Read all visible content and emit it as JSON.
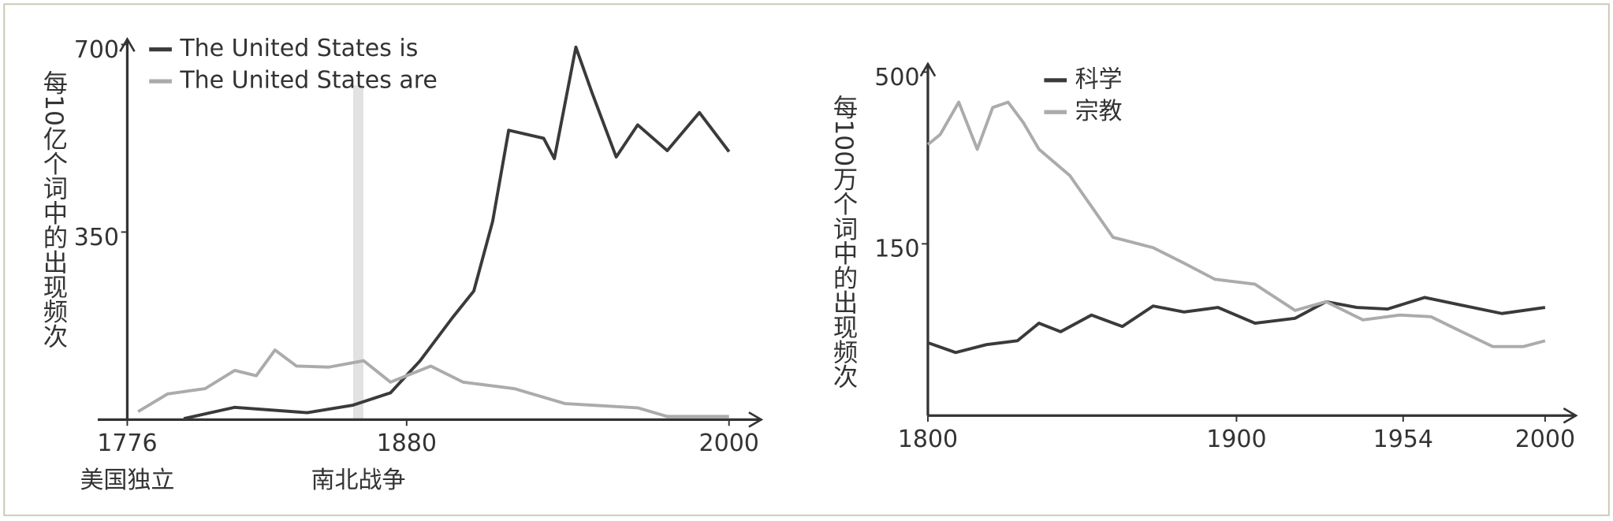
{
  "chart_data": [
    {
      "type": "line",
      "y_label": "每10亿个词中的出现频次",
      "xlim": [
        1765,
        2012
      ],
      "xticks": [
        1776,
        1880,
        2000
      ],
      "ylim": [
        0,
        710
      ],
      "yticks": [
        350,
        700
      ],
      "log_scale": false,
      "legend": "upper left",
      "annotations": [
        {
          "text": "美国独立",
          "x": 1776
        },
        {
          "text": "南北战争",
          "x": 1862
        }
      ],
      "series": [
        {
          "name": "The United States is",
          "color": "#3a3a3a",
          "x": [
            1797,
            1816,
            1843,
            1860,
            1874,
            1885,
            1897,
            1905,
            1912,
            1918,
            1931,
            1935,
            1943,
            1949,
            1958,
            1966,
            1977,
            1989,
            2000
          ],
          "values": [
            2,
            23,
            13,
            27,
            50,
            110,
            190,
            240,
            370,
            540,
            525,
            487,
            695,
            610,
            490,
            550,
            502,
            573,
            500
          ]
        },
        {
          "name": "The United States are",
          "color": "#ababab",
          "x": [
            1780,
            1791,
            1805,
            1816,
            1824,
            1831,
            1839,
            1851,
            1864,
            1874,
            1889,
            1901,
            1920,
            1939,
            1966,
            1977,
            2000
          ],
          "values": [
            15,
            48,
            58,
            92,
            82,
            130,
            100,
            98,
            110,
            70,
            100,
            70,
            58,
            30,
            22,
            6,
            6
          ]
        }
      ]
    },
    {
      "type": "line",
      "y_label": "每100万个词中的出现频次",
      "xlim": [
        1800,
        2010
      ],
      "xticks": [
        1800,
        1900,
        1954,
        2000
      ],
      "ylim": [
        45,
        530
      ],
      "yticks": [
        150,
        500
      ],
      "log_scale": true,
      "legend": "upper left",
      "series": [
        {
          "name": "科学",
          "color": "#3a3a3a",
          "x": [
            1800,
            1809,
            1819,
            1829,
            1836,
            1843,
            1853,
            1863,
            1873,
            1883,
            1894,
            1906,
            1919,
            1929,
            1939,
            1949,
            1961,
            1972,
            1986,
            2000
          ],
          "values": [
            75,
            70,
            74,
            76,
            86,
            81,
            91,
            84,
            97,
            93,
            96,
            86,
            89,
            100,
            96,
            95,
            103,
            98,
            92,
            96
          ]
        },
        {
          "name": "宗教",
          "color": "#ababab",
          "x": [
            1800,
            1804,
            1810,
            1816,
            1821,
            1826,
            1831,
            1836,
            1846,
            1860,
            1873,
            1883,
            1893,
            1906,
            1919,
            1929,
            1941,
            1953,
            1963,
            1973,
            1983,
            1993,
            2000
          ],
          "values": [
            301,
            323,
            405,
            291,
            390,
            405,
            350,
            291,
            242,
            157,
            146,
            131,
            117,
            113,
            94,
            100,
            88,
            91,
            90,
            81,
            73,
            73,
            76
          ]
        }
      ]
    }
  ]
}
